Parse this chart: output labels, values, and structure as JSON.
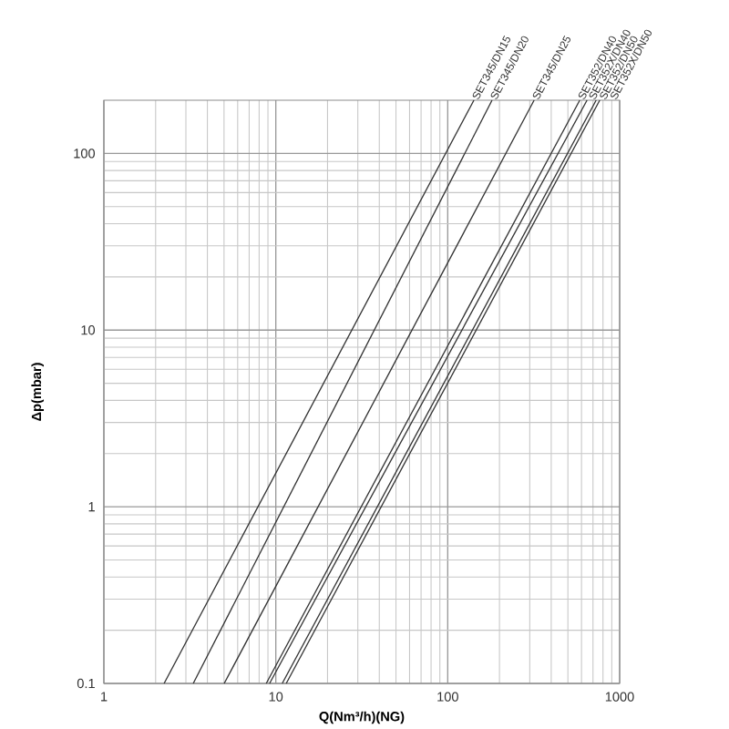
{
  "chart_data": {
    "type": "line",
    "xlabel": "Q(Nm³/h)(NG)",
    "ylabel": "Δp(mbar)",
    "log": "xy",
    "grid": true,
    "legend": false,
    "marker": "none",
    "line_style": "solid",
    "xlim": [
      1,
      1000
    ],
    "xticks": [
      1,
      10,
      100,
      1000
    ],
    "ylim": [
      0.1,
      200
    ],
    "yticks": [
      0.1,
      1,
      10,
      100
    ],
    "series": [
      {
        "name": "SET345/DN15",
        "color": "#333333",
        "x": [
          2.24,
          142
        ],
        "values": [
          0.1,
          200
        ]
      },
      {
        "name": "SET345/DN20",
        "color": "#333333",
        "x": [
          3.31,
          181
        ],
        "values": [
          0.1,
          200
        ]
      },
      {
        "name": "SET345/DN25",
        "color": "#333333",
        "x": [
          5.01,
          318
        ],
        "values": [
          0.1,
          200
        ]
      },
      {
        "name": "SET352/DN40",
        "color": "#333333",
        "x": [
          8.8,
          586
        ],
        "values": [
          0.1,
          200
        ]
      },
      {
        "name": "SET352X/DN40",
        "color": "#333333",
        "x": [
          9.2,
          646
        ],
        "values": [
          0.1,
          200
        ]
      },
      {
        "name": "SET352/DN50",
        "color": "#333333",
        "x": [
          10.9,
          730
        ],
        "values": [
          0.1,
          200
        ]
      },
      {
        "name": "SET352X/DN50",
        "color": "#333333",
        "x": [
          11.5,
          766
        ],
        "values": [
          0.1,
          200
        ]
      }
    ]
  }
}
